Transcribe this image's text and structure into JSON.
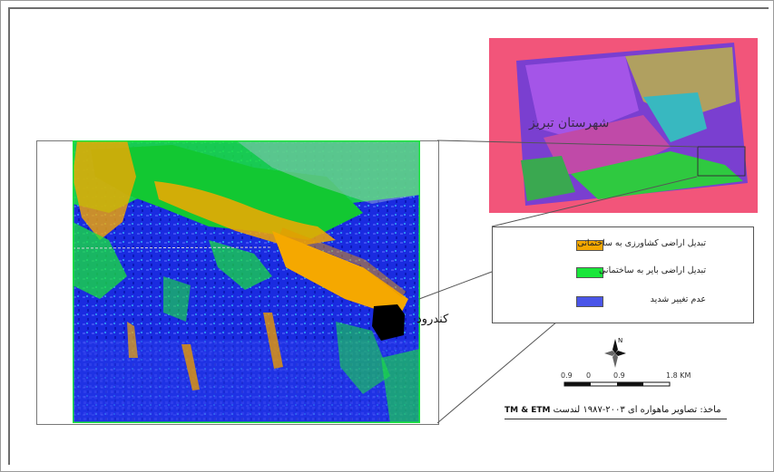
{
  "inset": {
    "label": "شهرستان تبریز"
  },
  "legend": {
    "items": [
      {
        "label": "تبدیل اراضی کشاورزی به ساختمانی",
        "color": "#f5a800"
      },
      {
        "label": "تبدیل اراضی بایر به ساختمانی",
        "color": "#19e63a"
      },
      {
        "label": "عدم تغییر شدید",
        "color": "#4a55e8"
      }
    ]
  },
  "place_label": "کندرود",
  "north_arrow": {
    "letter": "N",
    "icon": "north-arrow-icon"
  },
  "scale": {
    "ticks": [
      "0.9",
      "0",
      "0.9",
      "1.8 KM"
    ]
  },
  "source": {
    "text": "ماخذ: تصاویر ماهواره ای ۲۰۰۳-۱۹۸۷ لندست",
    "sensor": "TM & ETM"
  },
  "colors": {
    "inset_background": "#f2557a",
    "water_blue": "#1020d8",
    "urban_orange": "#f5a800",
    "bare_green": "#19e63a",
    "unchanged_blue": "#4a55e8"
  }
}
